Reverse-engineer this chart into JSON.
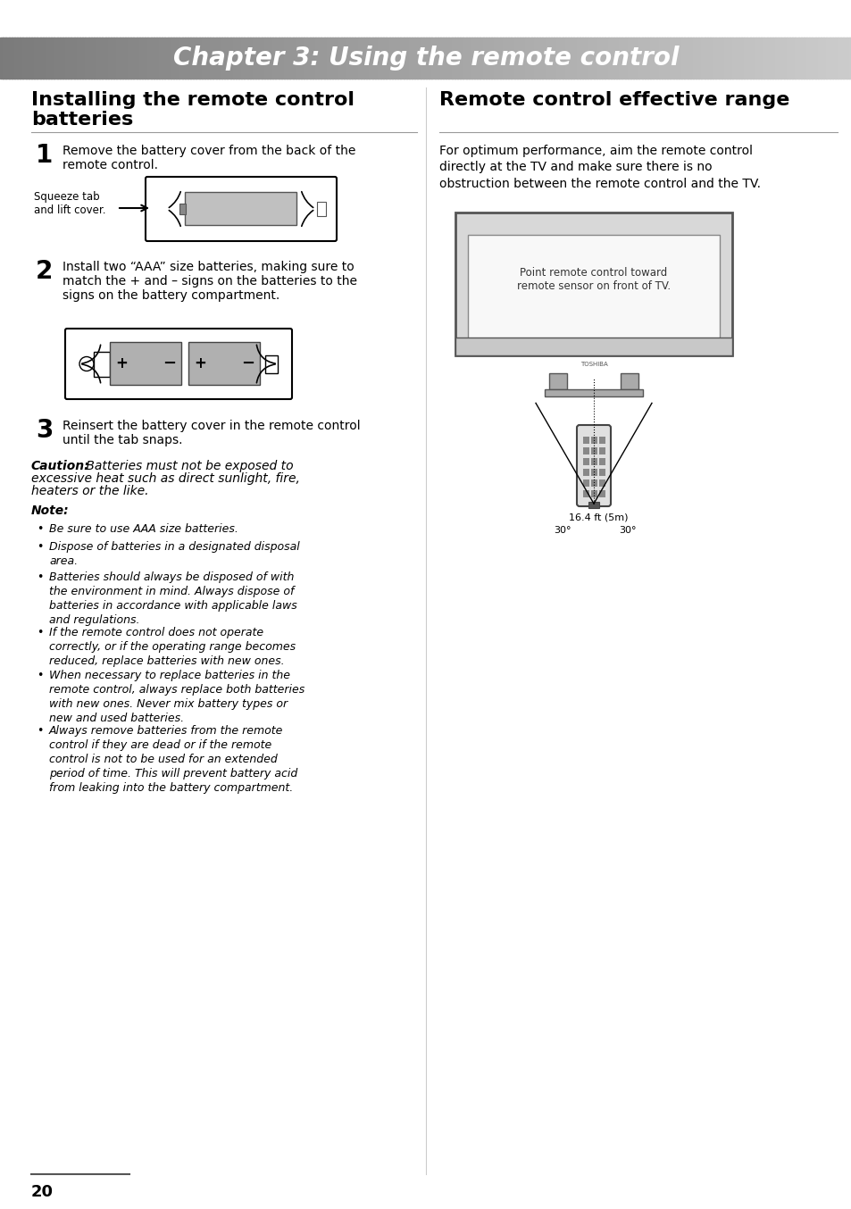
{
  "page_bg": "#ffffff",
  "header_text": "Chapter 3: Using the remote control",
  "left_title_line1": "Installing the remote control",
  "left_title_line2": "batteries",
  "right_title": "Remote control effective range",
  "right_intro": "For optimum performance, aim the remote control\ndirectly at the TV and make sure there is no\nobstruction between the remote control and the TV.",
  "step1_num": "1",
  "step1_text": "Remove the battery cover from the back of the\nremote control.",
  "step1_label": "Squeeze tab\nand lift cover.",
  "step2_num": "2",
  "step2_text": "Install two “AAA” size batteries, making sure to\nmatch the + and – signs on the batteries to the\nsigns on the battery compartment.",
  "step3_num": "3",
  "step3_text": "Reinsert the battery cover in the remote control\nuntil the tab snaps.",
  "caution_label": "Caution:",
  "caution_text_part1": " Batteries must not be exposed to",
  "caution_text_part2": "excessive heat such as direct sunlight, fire,",
  "caution_text_part3": "heaters or the like.",
  "note_label": "Note:",
  "bullets": [
    "Be sure to use AAA size batteries.",
    "Dispose of batteries in a designated disposal\narea.",
    "Batteries should always be disposed of with\nthe environment in mind. Always dispose of\nbatteries in accordance with applicable laws\nand regulations.",
    "If the remote control does not operate\ncorrectly, or if the operating range becomes\nreduced, replace batteries with new ones.",
    "When necessary to replace batteries in the\nremote control, always replace both batteries\nwith new ones. Never mix battery types or\nnew and used batteries.",
    "Always remove batteries from the remote\ncontrol if they are dead or if the remote\ncontrol is not to be used for an extended\nperiod of time. This will prevent battery acid\nfrom leaking into the battery compartment."
  ],
  "tv_label": "Point remote control toward\nremote sensor on front of TV.",
  "distance_label": "16.4 ft (5m)",
  "page_num": "20",
  "text_color": "#000000"
}
